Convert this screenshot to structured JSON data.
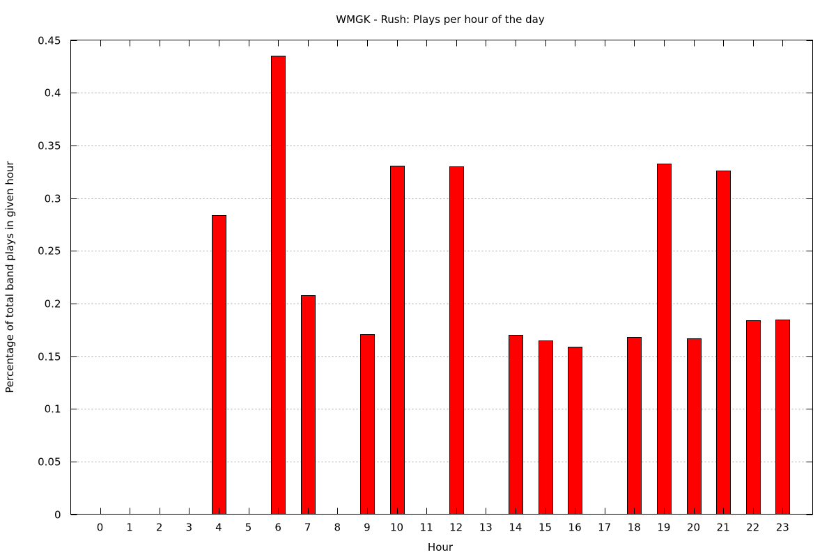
{
  "chart_data": {
    "type": "bar",
    "title": "WMGK - Rush: Plays per hour of the day",
    "xlabel": "Hour",
    "ylabel": "Percentage of total band plays in given hour",
    "categories": [
      "0",
      "1",
      "2",
      "3",
      "4",
      "5",
      "6",
      "7",
      "8",
      "9",
      "10",
      "11",
      "12",
      "13",
      "14",
      "15",
      "16",
      "17",
      "18",
      "19",
      "20",
      "21",
      "22",
      "23"
    ],
    "values": [
      0,
      0,
      0,
      0,
      0.284,
      0,
      0.435,
      0.208,
      0,
      0.171,
      0.331,
      0,
      0.33,
      0,
      0.17,
      0.165,
      0.159,
      0,
      0.168,
      0.333,
      0.167,
      0.326,
      0.184,
      0.185
    ],
    "ylim": [
      0,
      0.45
    ],
    "yticks": [
      "0",
      "0.05",
      "0.1",
      "0.15",
      "0.2",
      "0.25",
      "0.3",
      "0.35",
      "0.4",
      "0.45"
    ],
    "grid": true,
    "bar_color": "#ff0000"
  }
}
